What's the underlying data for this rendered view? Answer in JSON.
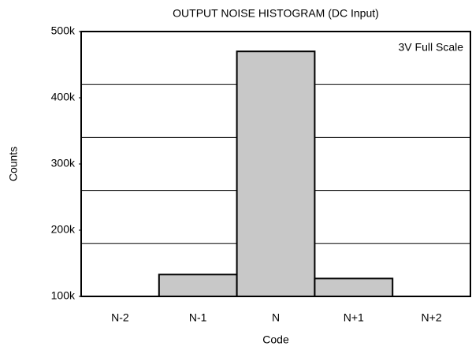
{
  "chart_data": {
    "type": "bar",
    "title": "OUTPUT NOISE HISTOGRAM (DC Input)",
    "x_label": "Code",
    "y_label": "Counts",
    "annotation": "3V Full Scale",
    "categories": [
      "N-2",
      "N-1",
      "N",
      "N+1",
      "N+2"
    ],
    "values": [
      100000,
      133000,
      470000,
      127000,
      100000
    ],
    "color": "#c8c8c8",
    "ylim": [
      100000,
      500000
    ],
    "yticks": [
      {
        "value": 100000,
        "label": "100k"
      },
      {
        "value": 200000,
        "label": "200k"
      },
      {
        "value": 300000,
        "label": "300k"
      },
      {
        "value": 400000,
        "label": "400k"
      },
      {
        "value": 500000,
        "label": "500k"
      }
    ],
    "ygrid": [
      180000,
      260000,
      340000,
      420000
    ]
  }
}
